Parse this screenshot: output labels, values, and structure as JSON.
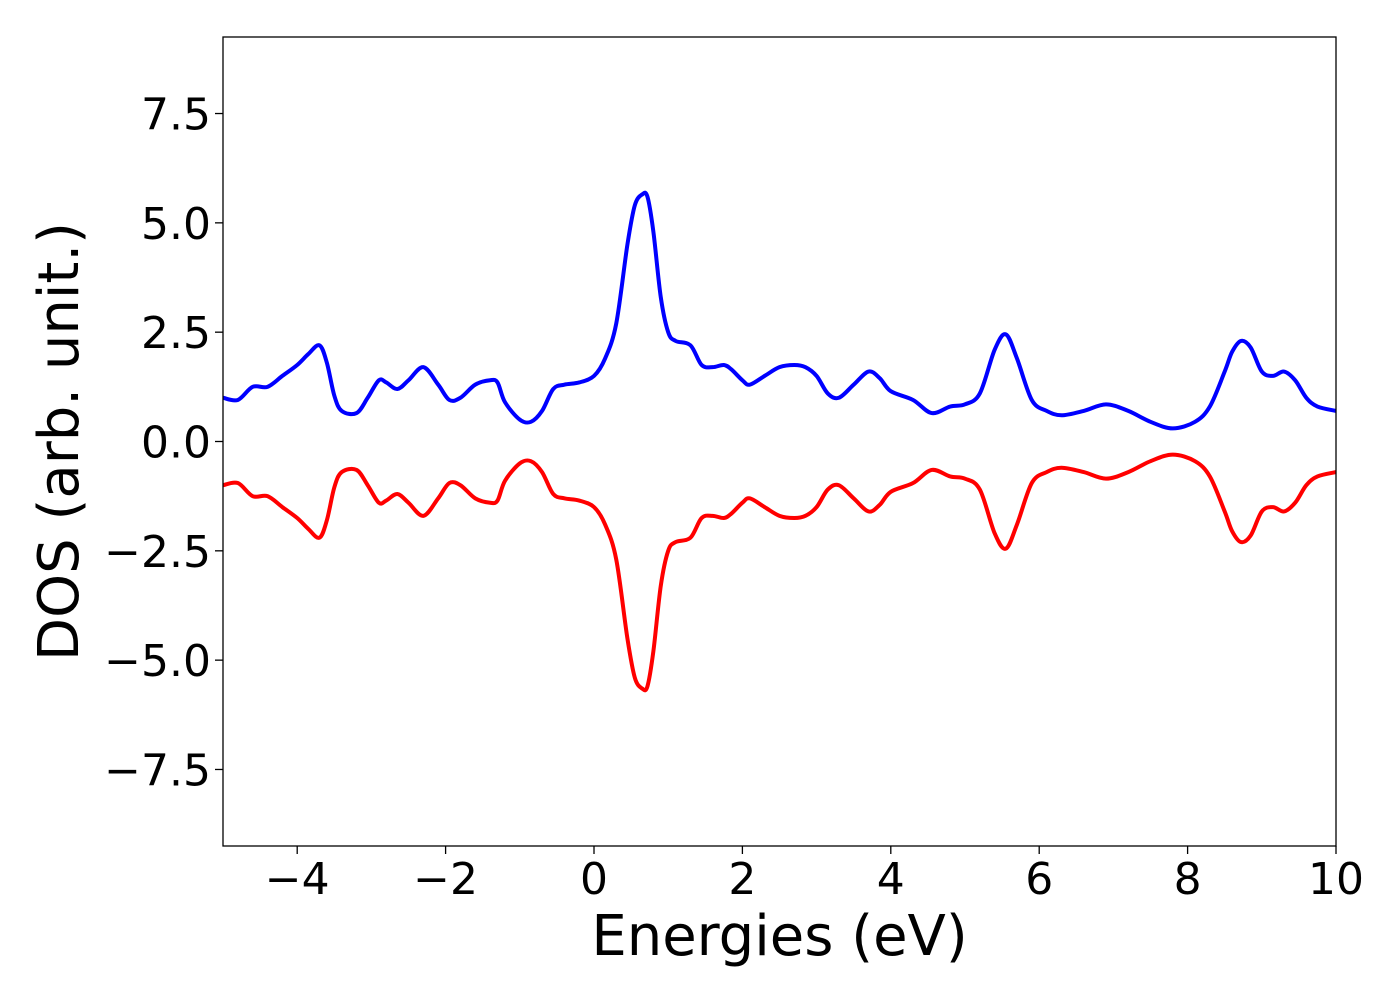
{
  "chart_data": {
    "type": "line",
    "title": "",
    "xlabel": "Energies (eV)",
    "ylabel": "DOS (arb. unit.)",
    "xlim": [
      -5,
      10
    ],
    "ylim": [
      -9.25,
      9.25
    ],
    "xticks": [
      -4,
      -2,
      0,
      2,
      4,
      6,
      8,
      10
    ],
    "xtick_labels": [
      "−4",
      "−2",
      "0",
      "2",
      "4",
      "6",
      "8",
      "10"
    ],
    "yticks": [
      -7.5,
      -5.0,
      -2.5,
      0.0,
      2.5,
      5.0,
      7.5
    ],
    "ytick_labels": [
      "−7.5",
      "−5.0",
      "−2.5",
      "0.0",
      "2.5",
      "5.0",
      "7.5"
    ],
    "grid": false,
    "legend": "none",
    "series": [
      {
        "color": "#0000ff",
        "x": [
          -5.0,
          -4.8,
          -4.6,
          -4.4,
          -4.2,
          -4.0,
          -3.85,
          -3.7,
          -3.6,
          -3.5,
          -3.4,
          -3.2,
          -3.05,
          -2.9,
          -2.8,
          -2.65,
          -2.5,
          -2.3,
          -2.1,
          -1.95,
          -1.8,
          -1.6,
          -1.4,
          -1.3,
          -1.2,
          -1.0,
          -0.85,
          -0.7,
          -0.55,
          -0.4,
          -0.2,
          0.0,
          0.15,
          0.3,
          0.45,
          0.55,
          0.65,
          0.72,
          0.8,
          0.9,
          1.0,
          1.1,
          1.3,
          1.45,
          1.6,
          1.75,
          1.85,
          2.0,
          2.1,
          2.3,
          2.5,
          2.7,
          2.85,
          3.0,
          3.15,
          3.3,
          3.5,
          3.7,
          3.85,
          4.0,
          4.3,
          4.55,
          4.8,
          5.0,
          5.2,
          5.4,
          5.55,
          5.7,
          5.9,
          6.1,
          6.3,
          6.6,
          6.9,
          7.2,
          7.5,
          7.8,
          8.1,
          8.3,
          8.5,
          8.6,
          8.72,
          8.85,
          9.0,
          9.15,
          9.3,
          9.45,
          9.6,
          9.75,
          10.0
        ],
        "y": [
          1.0,
          0.95,
          1.25,
          1.25,
          1.5,
          1.75,
          2.0,
          2.2,
          1.8,
          1.05,
          0.7,
          0.65,
          1.0,
          1.4,
          1.35,
          1.2,
          1.4,
          1.7,
          1.3,
          0.95,
          1.0,
          1.3,
          1.4,
          1.35,
          0.9,
          0.5,
          0.45,
          0.7,
          1.2,
          1.3,
          1.35,
          1.5,
          1.9,
          2.7,
          4.5,
          5.4,
          5.65,
          5.6,
          4.8,
          3.3,
          2.5,
          2.3,
          2.2,
          1.75,
          1.7,
          1.75,
          1.65,
          1.4,
          1.3,
          1.5,
          1.7,
          1.75,
          1.7,
          1.5,
          1.1,
          1.0,
          1.3,
          1.6,
          1.45,
          1.15,
          0.95,
          0.65,
          0.8,
          0.85,
          1.1,
          2.1,
          2.45,
          1.9,
          0.95,
          0.7,
          0.6,
          0.7,
          0.85,
          0.7,
          0.45,
          0.3,
          0.45,
          0.8,
          1.6,
          2.05,
          2.3,
          2.15,
          1.6,
          1.5,
          1.6,
          1.4,
          1.0,
          0.8,
          0.7
        ]
      },
      {
        "color": "#ff0000",
        "x": [
          -5.0,
          -4.8,
          -4.6,
          -4.4,
          -4.2,
          -4.0,
          -3.85,
          -3.7,
          -3.6,
          -3.5,
          -3.4,
          -3.2,
          -3.05,
          -2.9,
          -2.8,
          -2.65,
          -2.5,
          -2.3,
          -2.1,
          -1.95,
          -1.8,
          -1.6,
          -1.4,
          -1.3,
          -1.2,
          -1.0,
          -0.85,
          -0.7,
          -0.55,
          -0.4,
          -0.2,
          0.0,
          0.15,
          0.3,
          0.45,
          0.55,
          0.65,
          0.72,
          0.8,
          0.9,
          1.0,
          1.1,
          1.3,
          1.45,
          1.6,
          1.75,
          1.85,
          2.0,
          2.1,
          2.3,
          2.5,
          2.7,
          2.85,
          3.0,
          3.15,
          3.3,
          3.5,
          3.7,
          3.85,
          4.0,
          4.3,
          4.55,
          4.8,
          5.0,
          5.2,
          5.4,
          5.55,
          5.7,
          5.9,
          6.1,
          6.3,
          6.6,
          6.9,
          7.2,
          7.5,
          7.8,
          8.1,
          8.3,
          8.5,
          8.6,
          8.72,
          8.85,
          9.0,
          9.15,
          9.3,
          9.45,
          9.6,
          9.75,
          10.0
        ],
        "y": [
          -1.0,
          -0.95,
          -1.25,
          -1.25,
          -1.5,
          -1.75,
          -2.0,
          -2.2,
          -1.8,
          -1.05,
          -0.7,
          -0.65,
          -1.0,
          -1.4,
          -1.35,
          -1.2,
          -1.4,
          -1.7,
          -1.3,
          -0.95,
          -1.0,
          -1.3,
          -1.4,
          -1.35,
          -0.9,
          -0.5,
          -0.45,
          -0.7,
          -1.2,
          -1.3,
          -1.35,
          -1.5,
          -1.9,
          -2.7,
          -4.5,
          -5.4,
          -5.65,
          -5.6,
          -4.8,
          -3.3,
          -2.5,
          -2.3,
          -2.2,
          -1.75,
          -1.7,
          -1.75,
          -1.65,
          -1.4,
          -1.3,
          -1.5,
          -1.7,
          -1.75,
          -1.7,
          -1.5,
          -1.1,
          -1.0,
          -1.3,
          -1.6,
          -1.45,
          -1.15,
          -0.95,
          -0.65,
          -0.8,
          -0.85,
          -1.1,
          -2.1,
          -2.45,
          -1.9,
          -0.95,
          -0.7,
          -0.6,
          -0.7,
          -0.85,
          -0.7,
          -0.45,
          -0.3,
          -0.45,
          -0.8,
          -1.6,
          -2.05,
          -2.3,
          -2.15,
          -1.6,
          -1.5,
          -1.6,
          -1.4,
          -1.0,
          -0.8,
          -0.7
        ]
      }
    ]
  }
}
